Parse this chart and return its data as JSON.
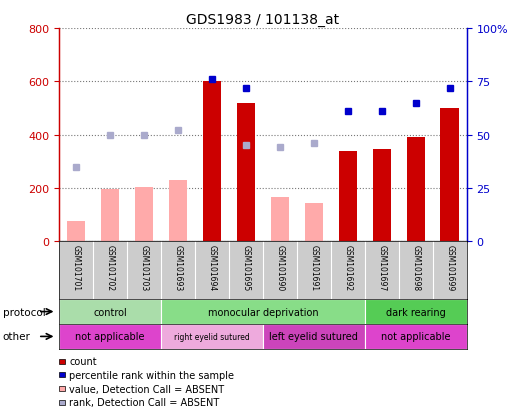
{
  "title": "GDS1983 / 101138_at",
  "samples": [
    "GSM101701",
    "GSM101702",
    "GSM101703",
    "GSM101693",
    "GSM101694",
    "GSM101695",
    "GSM101690",
    "GSM101691",
    "GSM101692",
    "GSM101697",
    "GSM101698",
    "GSM101699"
  ],
  "count_values": [
    null,
    null,
    null,
    null,
    600,
    520,
    null,
    null,
    340,
    345,
    390,
    500
  ],
  "count_absent": [
    75,
    195,
    205,
    230,
    null,
    null,
    165,
    145,
    null,
    null,
    null,
    null
  ],
  "rank_present": [
    null,
    null,
    null,
    null,
    76,
    72,
    null,
    null,
    61,
    61,
    65,
    72
  ],
  "rank_absent": [
    35,
    50,
    50,
    52,
    null,
    45,
    44,
    46,
    null,
    null,
    null,
    null
  ],
  "ylim_left": [
    0,
    800
  ],
  "ylim_right": [
    0,
    100
  ],
  "yticks_left": [
    0,
    200,
    400,
    600,
    800
  ],
  "yticks_right": [
    0,
    25,
    50,
    75,
    100
  ],
  "ytick_labels_right": [
    "0",
    "25",
    "50",
    "75",
    "100%"
  ],
  "bar_color_present": "#cc0000",
  "bar_color_absent": "#ffaaaa",
  "dot_color_present": "#0000cc",
  "dot_color_absent": "#aaaacc",
  "protocol_groups": [
    {
      "label": "control",
      "start": 0,
      "end": 3,
      "color": "#aaddaa"
    },
    {
      "label": "monocular deprivation",
      "start": 3,
      "end": 9,
      "color": "#88dd88"
    },
    {
      "label": "dark rearing",
      "start": 9,
      "end": 12,
      "color": "#55cc55"
    }
  ],
  "other_groups": [
    {
      "label": "not applicable",
      "start": 0,
      "end": 3,
      "color": "#dd44cc"
    },
    {
      "label": "right eyelid sutured",
      "start": 3,
      "end": 6,
      "color": "#eeaadd"
    },
    {
      "label": "left eyelid sutured",
      "start": 6,
      "end": 9,
      "color": "#cc44bb"
    },
    {
      "label": "not applicable",
      "start": 9,
      "end": 12,
      "color": "#dd44cc"
    }
  ],
  "legend_items": [
    {
      "label": "count",
      "color": "#cc0000"
    },
    {
      "label": "percentile rank within the sample",
      "color": "#0000cc"
    },
    {
      "label": "value, Detection Call = ABSENT",
      "color": "#ffaaaa"
    },
    {
      "label": "rank, Detection Call = ABSENT",
      "color": "#aaaacc"
    }
  ],
  "protocol_label": "protocol",
  "other_label": "other",
  "bg_color": "#ffffff",
  "grid_color": "#777777",
  "axis_left_color": "#cc0000",
  "axis_right_color": "#0000cc"
}
